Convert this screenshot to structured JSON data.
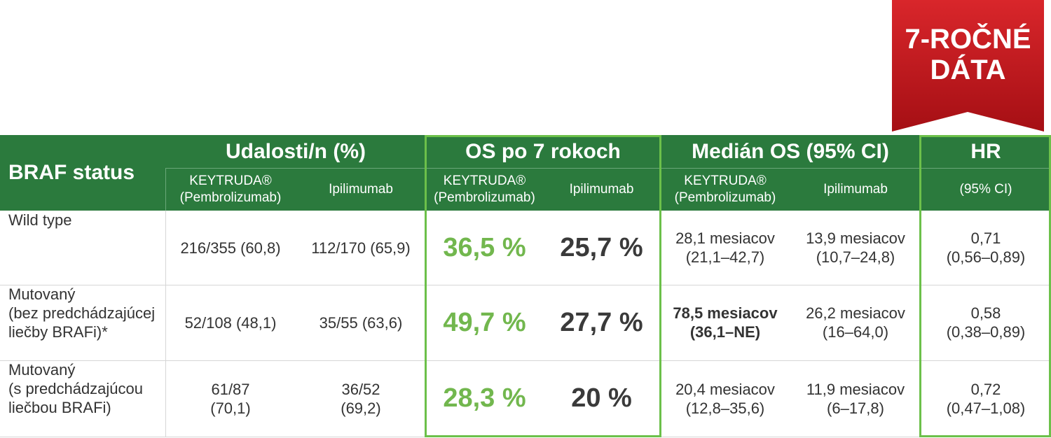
{
  "badge": {
    "line1": "7-ROČNÉ",
    "line2": "DÁTA",
    "color": "#c0161c"
  },
  "header": {
    "braf_status": "BRAF status",
    "events": "Udalosti/n (%)",
    "os7": "OS po 7 rokoch",
    "median_os": "Medián OS (95% CI)",
    "hr": "HR",
    "keytruda_line1": "KEYTRUDA®",
    "keytruda_line2": "(Pembrolizumab)",
    "ipilimumab": "Ipilimumab",
    "hr_ci": "(95% CI)"
  },
  "colors": {
    "header_bg": "#2b7a3d",
    "frame": "#6cc04a",
    "highlight_green": "#72b74e"
  },
  "rows": [
    {
      "status_lines": [
        "Wild type"
      ],
      "events_k": [
        "216/355 (60,8)"
      ],
      "events_i": [
        "112/170 (65,9)"
      ],
      "os_k": "36,5 %",
      "os_i": "25,7 %",
      "median_k": [
        "28,1 mesiacov",
        "(21,1–42,7)"
      ],
      "median_i": [
        "13,9 mesiacov",
        "(10,7–24,8)"
      ],
      "hr": [
        "0,71",
        "(0,56–0,89)"
      ]
    },
    {
      "status_lines": [
        "Mutovaný",
        "(bez predchádzajúcej",
        "liečby BRAFi)*"
      ],
      "events_k": [
        "52/108 (48,1)"
      ],
      "events_i": [
        "35/55 (63,6)"
      ],
      "os_k": "49,7 %",
      "os_i": "27,7 %",
      "median_k": [
        "78,5 mesiacov",
        "(36,1–NE)"
      ],
      "median_i": [
        "26,2 mesiacov",
        "(16–64,0)"
      ],
      "hr": [
        "0,58",
        "(0,38–0,89)"
      ]
    },
    {
      "status_lines": [
        "Mutovaný",
        "(s predchádzajúcou",
        "liečbou BRAFi)"
      ],
      "events_k": [
        "61/87",
        "(70,1)"
      ],
      "events_i": [
        "36/52",
        "(69,2)"
      ],
      "os_k": "28,3 %",
      "os_i": "20 %",
      "median_k": [
        "20,4 mesiacov",
        "(12,8–35,6)"
      ],
      "median_i": [
        "11,9 mesiacov",
        "(6–17,8)"
      ],
      "hr": [
        "0,72",
        "(0,47–1,08)"
      ]
    }
  ]
}
